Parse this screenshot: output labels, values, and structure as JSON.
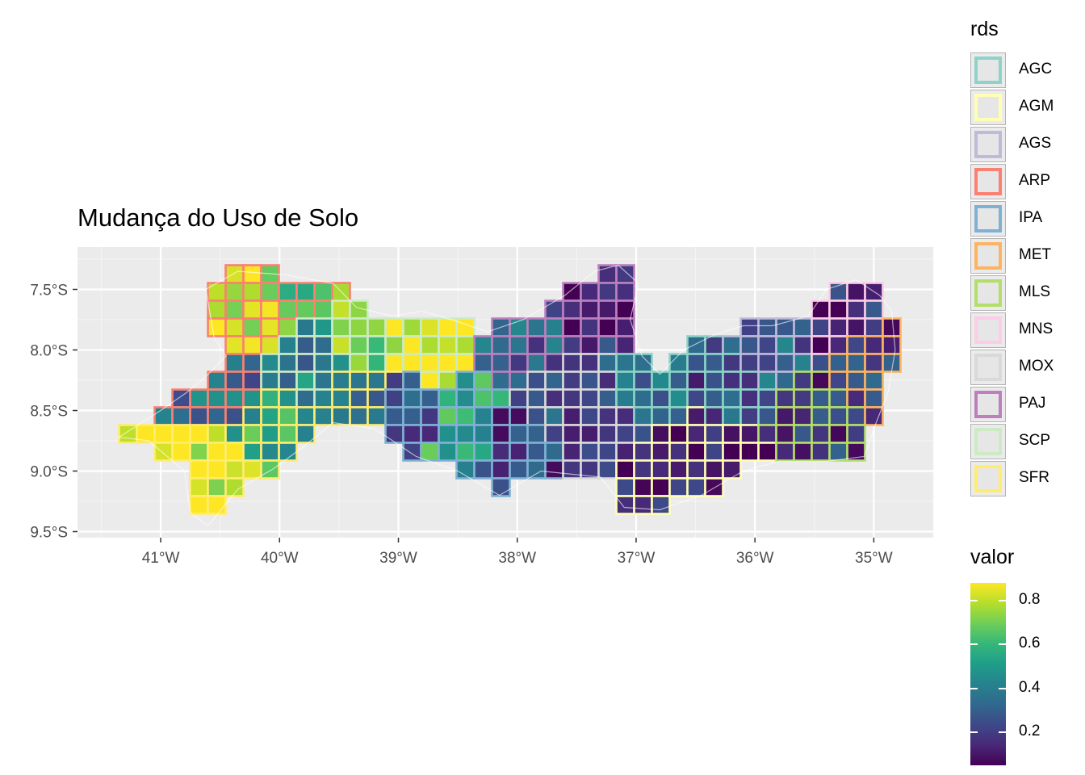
{
  "title": "Mudança do Uso de Solo",
  "x_axis": {
    "ticks": [
      "41°W",
      "40°W",
      "39°W",
      "38°W",
      "37°W",
      "36°W",
      "35°W"
    ]
  },
  "y_axis": {
    "ticks": [
      "7.5°S",
      "8.0°S",
      "8.5°S",
      "9.0°S",
      "9.5°S"
    ]
  },
  "legend_rds": {
    "title": "rds",
    "items": [
      {
        "label": "AGC",
        "color": "#8DD3C7"
      },
      {
        "label": "AGM",
        "color": "#FFFFB3"
      },
      {
        "label": "AGS",
        "color": "#BEBADA"
      },
      {
        "label": "ARP",
        "color": "#FB8072"
      },
      {
        "label": "IPA",
        "color": "#80B1D3"
      },
      {
        "label": "MET",
        "color": "#FDB462"
      },
      {
        "label": "MLS",
        "color": "#B3DE69"
      },
      {
        "label": "MNS",
        "color": "#FCCDE5"
      },
      {
        "label": "MOX",
        "color": "#D9D9D9"
      },
      {
        "label": "PAJ",
        "color": "#BC80BD"
      },
      {
        "label": "SCP",
        "color": "#CCEBC5"
      },
      {
        "label": "SFR",
        "color": "#FFED6F"
      }
    ]
  },
  "legend_valor": {
    "title": "valor",
    "ticks": [
      "0.8",
      "0.6",
      "0.4",
      "0.2"
    ],
    "colors": [
      "#FDE725",
      "#B5DE2B",
      "#6ECE58",
      "#35B779",
      "#1F9E89",
      "#26828E",
      "#31688E",
      "#3E4989",
      "#482878",
      "#440154"
    ]
  },
  "chart_data": {
    "type": "choropleth",
    "title": "Mudança do Uso de Solo",
    "xlim": [
      -41.7,
      -34.5
    ],
    "ylim": [
      -9.55,
      -7.15
    ],
    "x_ticks": [
      -41,
      -40,
      -39,
      -38,
      -37,
      -36,
      -35
    ],
    "y_ticks": [
      -7.5,
      -8.0,
      -8.5,
      -9.0,
      -9.5
    ],
    "fill_variable": "valor",
    "fill_range": [
      0.05,
      0.88
    ],
    "border_variable": "rds",
    "regions": [
      {
        "rds": "ARP",
        "valor": 0.82,
        "lon": -40.3,
        "lat": -7.7
      },
      {
        "rds": "ARP",
        "valor": 0.65,
        "lon": -39.9,
        "lat": -7.5
      },
      {
        "rds": "ARP",
        "valor": 0.35,
        "lon": -40.5,
        "lat": -8.3
      },
      {
        "rds": "SFR",
        "valor": 0.85,
        "lon": -40.6,
        "lat": -9.0
      },
      {
        "rds": "SFR",
        "valor": 0.55,
        "lon": -40.0,
        "lat": -8.7
      },
      {
        "rds": "SFR",
        "valor": 0.3,
        "lon": -39.3,
        "lat": -8.4
      },
      {
        "rds": "SCP",
        "valor": 0.4,
        "lon": -39.7,
        "lat": -8.1
      },
      {
        "rds": "SCP",
        "valor": 0.7,
        "lon": -39.3,
        "lat": -7.9
      },
      {
        "rds": "SCP",
        "valor": 0.85,
        "lon": -38.8,
        "lat": -7.9
      },
      {
        "rds": "IPA",
        "valor": 0.25,
        "lon": -38.9,
        "lat": -8.6
      },
      {
        "rds": "IPA",
        "valor": 0.55,
        "lon": -38.5,
        "lat": -8.7
      },
      {
        "rds": "IPA",
        "valor": 0.2,
        "lon": -38.0,
        "lat": -8.9
      },
      {
        "rds": "PAJ",
        "valor": 0.3,
        "lon": -37.8,
        "lat": -7.9
      },
      {
        "rds": "PAJ",
        "valor": 0.15,
        "lon": -37.4,
        "lat": -7.6
      },
      {
        "rds": "MOX",
        "valor": 0.25,
        "lon": -37.6,
        "lat": -8.4
      },
      {
        "rds": "MOX",
        "valor": 0.2,
        "lon": -37.2,
        "lat": -8.8
      },
      {
        "rds": "AGM",
        "valor": 0.15,
        "lon": -36.9,
        "lat": -9.0
      },
      {
        "rds": "AGM",
        "valor": 0.1,
        "lon": -36.4,
        "lat": -8.8
      },
      {
        "rds": "AGC",
        "valor": 0.25,
        "lon": -36.3,
        "lat": -8.3
      },
      {
        "rds": "AGC",
        "valor": 0.35,
        "lon": -36.7,
        "lat": -8.3
      },
      {
        "rds": "AGS",
        "valor": 0.3,
        "lon": -35.9,
        "lat": -7.9
      },
      {
        "rds": "MLS",
        "valor": 0.2,
        "lon": -35.4,
        "lat": -8.6
      },
      {
        "rds": "MNS",
        "valor": 0.15,
        "lon": -35.3,
        "lat": -7.7
      },
      {
        "rds": "MET",
        "valor": 0.2,
        "lon": -35.0,
        "lat": -8.2
      }
    ]
  }
}
